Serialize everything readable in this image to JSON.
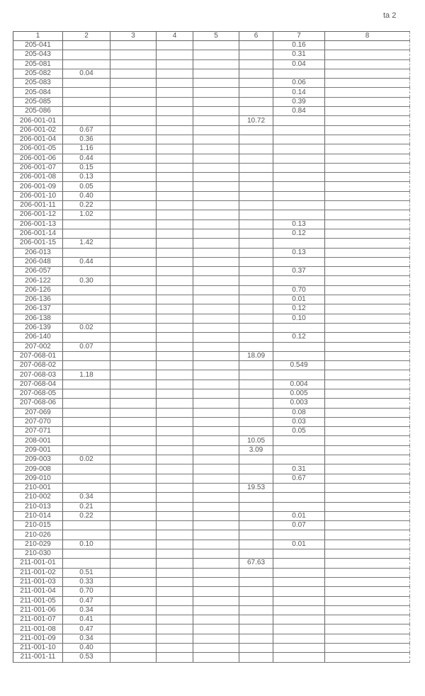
{
  "page_label": "ta 2",
  "columns": [
    "1",
    "2",
    "3",
    "4",
    "5",
    "6",
    "7",
    "8"
  ],
  "rows": [
    [
      "205-041",
      "",
      "",
      "",
      "",
      "",
      "0.16",
      ""
    ],
    [
      "205-043",
      "",
      "",
      "",
      "",
      "",
      "0.31",
      ""
    ],
    [
      "205-081",
      "",
      "",
      "",
      "",
      "",
      "0.04",
      ""
    ],
    [
      "205-082",
      "0.04",
      "",
      "",
      "",
      "",
      "",
      ""
    ],
    [
      "205-083",
      "",
      "",
      "",
      "",
      "",
      "0.06",
      ""
    ],
    [
      "205-084",
      "",
      "",
      "",
      "",
      "",
      "0.14",
      ""
    ],
    [
      "205-085",
      "",
      "",
      "",
      "",
      "",
      "0.39",
      ""
    ],
    [
      "205-086",
      "",
      "",
      "",
      "",
      "",
      "0.84",
      ""
    ],
    [
      "206-001-01",
      "",
      "",
      "",
      "",
      "10.72",
      "",
      ""
    ],
    [
      "206-001-02",
      "0.67",
      "",
      "",
      "",
      "",
      "",
      ""
    ],
    [
      "206-001-04",
      "0.36",
      "",
      "",
      "",
      "",
      "",
      ""
    ],
    [
      "206-001-05",
      "1.16",
      "",
      "",
      "",
      "",
      "",
      ""
    ],
    [
      "206-001-06",
      "0.44",
      "",
      "",
      "",
      "",
      "",
      ""
    ],
    [
      "206-001-07",
      "0.15",
      "",
      "",
      "",
      "",
      "",
      ""
    ],
    [
      "206-001-08",
      "0.13",
      "",
      "",
      "",
      "",
      "",
      ""
    ],
    [
      "206-001-09",
      "0.05",
      "",
      "",
      "",
      "",
      "",
      ""
    ],
    [
      "206-001-10",
      "0.40",
      "",
      "",
      "",
      "",
      "",
      ""
    ],
    [
      "206-001-11",
      "0.22",
      "",
      "",
      "",
      "",
      "",
      ""
    ],
    [
      "206-001-12",
      "1.02",
      "",
      "",
      "",
      "",
      "",
      ""
    ],
    [
      "206-001-13",
      "",
      "",
      "",
      "",
      "",
      "0.13",
      ""
    ],
    [
      "206-001-14",
      "",
      "",
      "",
      "",
      "",
      "0.12",
      ""
    ],
    [
      "206-001-15",
      "1.42",
      "",
      "",
      "",
      "",
      "",
      ""
    ],
    [
      "206-013",
      "",
      "",
      "",
      "",
      "",
      "0.13",
      ""
    ],
    [
      "206-048",
      "0.44",
      "",
      "",
      "",
      "",
      "",
      ""
    ],
    [
      "206-057",
      "",
      "",
      "",
      "",
      "",
      "0.37",
      ""
    ],
    [
      "206-122",
      "0.30",
      "",
      "",
      "",
      "",
      "",
      ""
    ],
    [
      "206-126",
      "",
      "",
      "",
      "",
      "",
      "0.70",
      ""
    ],
    [
      "206-136",
      "",
      "",
      "",
      "",
      "",
      "0.01",
      ""
    ],
    [
      "206-137",
      "",
      "",
      "",
      "",
      "",
      "0.12",
      ""
    ],
    [
      "206-138",
      "",
      "",
      "",
      "",
      "",
      "0.10",
      ""
    ],
    [
      "206-139",
      "0.02",
      "",
      "",
      "",
      "",
      "",
      ""
    ],
    [
      "206-140",
      "",
      "",
      "",
      "",
      "",
      "0.12",
      ""
    ],
    [
      "207-002",
      "0.07",
      "",
      "",
      "",
      "",
      "",
      ""
    ],
    [
      "207-068-01",
      "",
      "",
      "",
      "",
      "18.09",
      "",
      ""
    ],
    [
      "207-068-02",
      "",
      "",
      "",
      "",
      "",
      "0.549",
      ""
    ],
    [
      "207-068-03",
      "1.18",
      "",
      "",
      "",
      "",
      "",
      ""
    ],
    [
      "207-068-04",
      "",
      "",
      "",
      "",
      "",
      "0.004",
      ""
    ],
    [
      "207-068-05",
      "",
      "",
      "",
      "",
      "",
      "0.005",
      ""
    ],
    [
      "207-068-06",
      "",
      "",
      "",
      "",
      "",
      "0.003",
      ""
    ],
    [
      "207-069",
      "",
      "",
      "",
      "",
      "",
      "0.08",
      ""
    ],
    [
      "207-070",
      "",
      "",
      "",
      "",
      "",
      "0.03",
      ""
    ],
    [
      "207-071",
      "",
      "",
      "",
      "",
      "",
      "0.05",
      ""
    ],
    [
      "208-001",
      "",
      "",
      "",
      "",
      "10.05",
      "",
      ""
    ],
    [
      "209-001",
      "",
      "",
      "",
      "",
      "3.09",
      "",
      ""
    ],
    [
      "209-003",
      "0.02",
      "",
      "",
      "",
      "",
      "",
      ""
    ],
    [
      "209-008",
      "",
      "",
      "",
      "",
      "",
      "0.31",
      ""
    ],
    [
      "209-010",
      "",
      "",
      "",
      "",
      "",
      "0.67",
      ""
    ],
    [
      "210-001",
      "",
      "",
      "",
      "",
      "19.53",
      "",
      ""
    ],
    [
      "210-002",
      "0.34",
      "",
      "",
      "",
      "",
      "",
      ""
    ],
    [
      "210-013",
      "0.21",
      "",
      "",
      "",
      "",
      "",
      ""
    ],
    [
      "210-014",
      "0.22",
      "",
      "",
      "",
      "",
      "0.01",
      ""
    ],
    [
      "210-015",
      "",
      "",
      "",
      "",
      "",
      "0.07",
      ""
    ],
    [
      "210-026",
      "",
      "",
      "",
      "",
      "",
      "",
      ""
    ],
    [
      "210-029",
      "0.10",
      "",
      "",
      "",
      "",
      "0.01",
      ""
    ],
    [
      "210-030",
      "",
      "",
      "",
      "",
      "",
      "",
      ""
    ],
    [
      "211-001-01",
      "",
      "",
      "",
      "",
      "67.63",
      "",
      ""
    ],
    [
      "211-001-02",
      "0.51",
      "",
      "",
      "",
      "",
      "",
      ""
    ],
    [
      "211-001-03",
      "0.33",
      "",
      "",
      "",
      "",
      "",
      ""
    ],
    [
      "211-001-04",
      "0.70",
      "",
      "",
      "",
      "",
      "",
      ""
    ],
    [
      "211-001-05",
      "0.47",
      "",
      "",
      "",
      "",
      "",
      ""
    ],
    [
      "211-001-06",
      "0.34",
      "",
      "",
      "",
      "",
      "",
      ""
    ],
    [
      "211-001-07",
      "0.41",
      "",
      "",
      "",
      "",
      "",
      ""
    ],
    [
      "211-001-08",
      "0.47",
      "",
      "",
      "",
      "",
      "",
      ""
    ],
    [
      "211-001-09",
      "0.34",
      "",
      "",
      "",
      "",
      "",
      ""
    ],
    [
      "211-001-10",
      "0.40",
      "",
      "",
      "",
      "",
      "",
      ""
    ],
    [
      "211-001-11",
      "0.53",
      "",
      "",
      "",
      "",
      "",
      ""
    ]
  ]
}
